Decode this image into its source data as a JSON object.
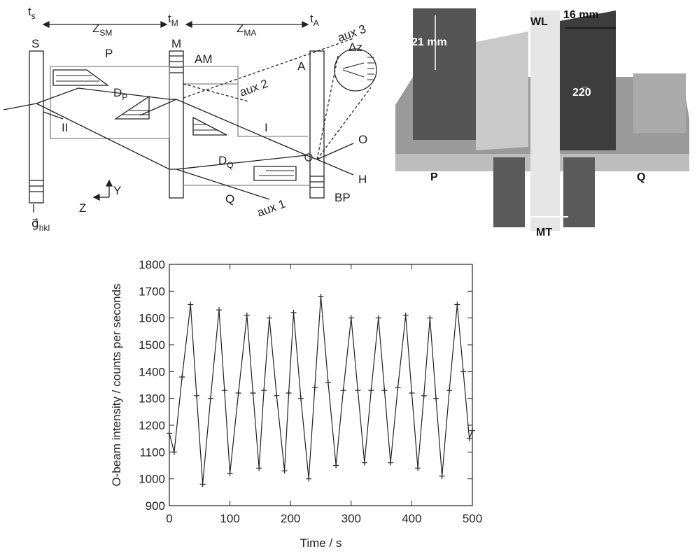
{
  "diagram": {
    "labels": [
      {
        "text": "t",
        "sub": "s"
      },
      {
        "text": "Z",
        "sub": "SM"
      },
      {
        "text": "t",
        "sub": "M"
      },
      {
        "text": "Z",
        "sub": "MA"
      },
      {
        "text": "t",
        "sub": "A"
      },
      {
        "text": "S"
      },
      {
        "text": "M"
      },
      {
        "text": "A"
      },
      {
        "text": "P"
      },
      {
        "text": "AM"
      },
      {
        "text": "aux 3"
      },
      {
        "text": "Δz"
      },
      {
        "text": "D",
        "sub": "P"
      },
      {
        "text": "aux 2"
      },
      {
        "text": "II"
      },
      {
        "text": "I"
      },
      {
        "text": "O"
      },
      {
        "text": "D",
        "sub": "Q"
      },
      {
        "text": "H"
      },
      {
        "text": "Y"
      },
      {
        "text": "Z"
      },
      {
        "text": "Q"
      },
      {
        "text": "aux 1"
      },
      {
        "text": "BP"
      },
      {
        "text": "g⃗",
        "sub": "hkl"
      }
    ]
  },
  "photo": {
    "labels": [
      "21 mm",
      "WL",
      "16 mm",
      "22̅0",
      "P",
      "Q",
      "MT"
    ]
  },
  "chart_data": {
    "type": "line",
    "xlabel": "Time / s",
    "ylabel": "O-beam intensity /  counts per seconds",
    "x": [
      0,
      8,
      21,
      35,
      45,
      55,
      68,
      82,
      91,
      100,
      114,
      128,
      138,
      148,
      156,
      165,
      177,
      190,
      197,
      205,
      217,
      230,
      240,
      250,
      262,
      275,
      287,
      300,
      311,
      322,
      333,
      345,
      355,
      365,
      377,
      390,
      400,
      410,
      420,
      430,
      440,
      450,
      462,
      475,
      485,
      495,
      500
    ],
    "series": [
      {
        "color": "#222222",
        "marker": "+",
        "values": [
          1170,
          1100,
          1380,
          1650,
          1310,
          980,
          1300,
          1630,
          1330,
          1020,
          1320,
          1610,
          1320,
          1040,
          1330,
          1600,
          1310,
          1030,
          1320,
          1620,
          1300,
          1000,
          1340,
          1680,
          1360,
          1050,
          1330,
          1600,
          1330,
          1060,
          1330,
          1600,
          1330,
          1060,
          1340,
          1610,
          1320,
          1040,
          1310,
          1600,
          1300,
          1010,
          1330,
          1650,
          1400,
          1150,
          1180
        ]
      }
    ],
    "xlim": [
      0,
      500
    ],
    "ylim": [
      900,
      1800
    ],
    "xticks": [
      0,
      100,
      200,
      300,
      400,
      500
    ],
    "yticks": [
      900,
      1000,
      1100,
      1200,
      1300,
      1400,
      1500,
      1600,
      1700,
      1800
    ]
  }
}
